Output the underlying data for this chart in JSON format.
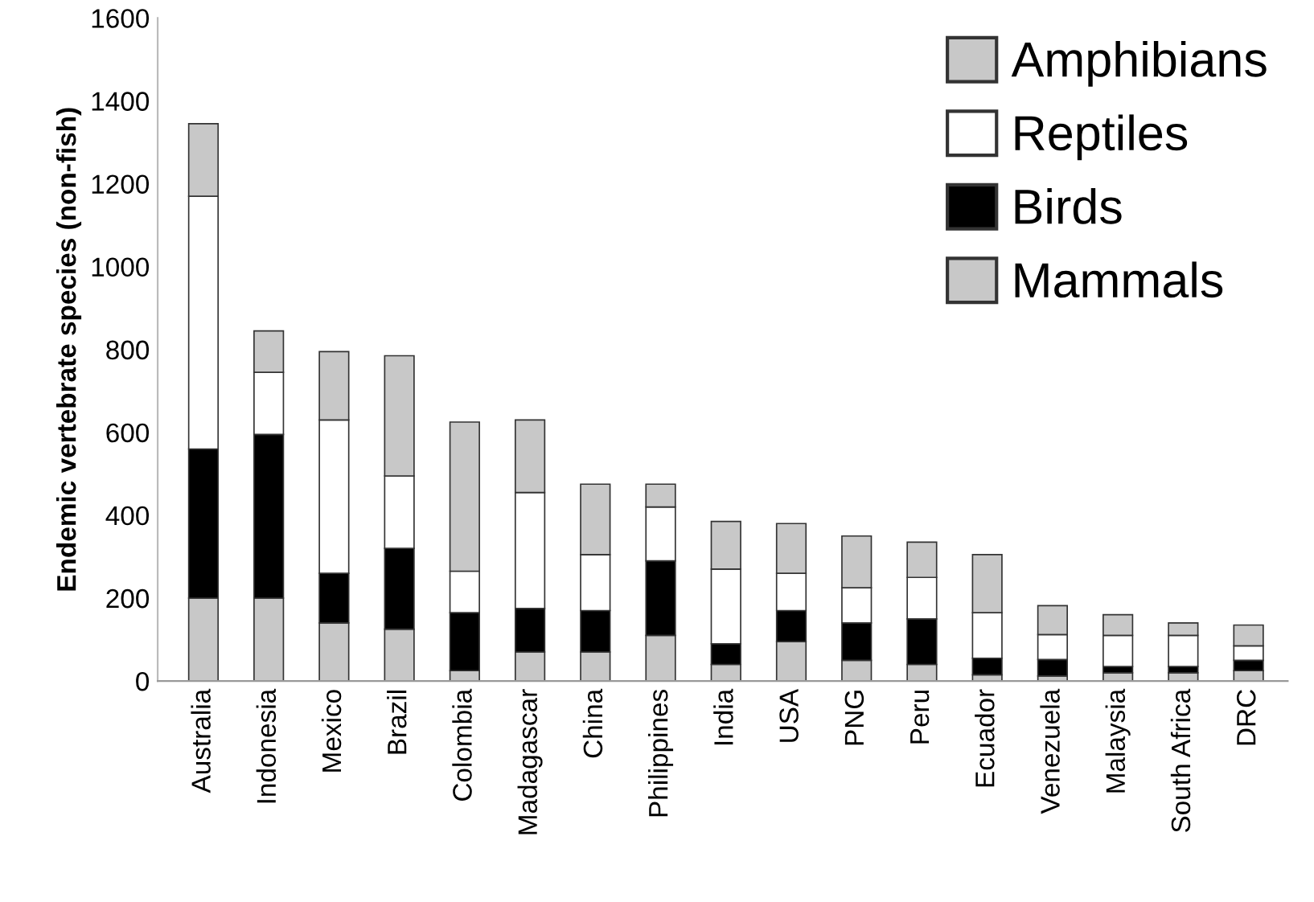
{
  "chart_data": {
    "type": "bar",
    "stacked": true,
    "ylabel": "Endemic vertebrate species (non-fish)",
    "categories": [
      "Australia",
      "Indonesia",
      "Mexico",
      "Brazil",
      "Colombia",
      "Madagascar",
      "China",
      "Philippines",
      "India",
      "USA",
      "PNG",
      "Peru",
      "Ecuador",
      "Venezuela",
      "Malaysia",
      "South Africa",
      "DRC"
    ],
    "series": [
      {
        "name": "Mammals",
        "color": "#c8c8c8",
        "values": [
          200,
          200,
          140,
          125,
          25,
          70,
          70,
          110,
          40,
          95,
          50,
          40,
          15,
          12,
          20,
          20,
          25
        ]
      },
      {
        "name": "Birds",
        "color": "#000000",
        "values": [
          360,
          395,
          120,
          195,
          140,
          105,
          100,
          180,
          50,
          75,
          90,
          110,
          40,
          40,
          15,
          15,
          25
        ]
      },
      {
        "name": "Reptiles",
        "color": "#ffffff",
        "values": [
          610,
          150,
          370,
          175,
          100,
          280,
          135,
          130,
          180,
          90,
          85,
          100,
          110,
          60,
          75,
          75,
          35
        ]
      },
      {
        "name": "Amphibians",
        "color": "#c8c8c8",
        "values": [
          175,
          100,
          165,
          290,
          360,
          175,
          170,
          55,
          115,
          120,
          125,
          85,
          140,
          70,
          50,
          30,
          50
        ]
      }
    ],
    "ylim": [
      0,
      1600
    ],
    "yticks": [
      0,
      200,
      400,
      600,
      800,
      1000,
      1200,
      1400,
      1600
    ],
    "grid": false,
    "legend": "top right"
  }
}
